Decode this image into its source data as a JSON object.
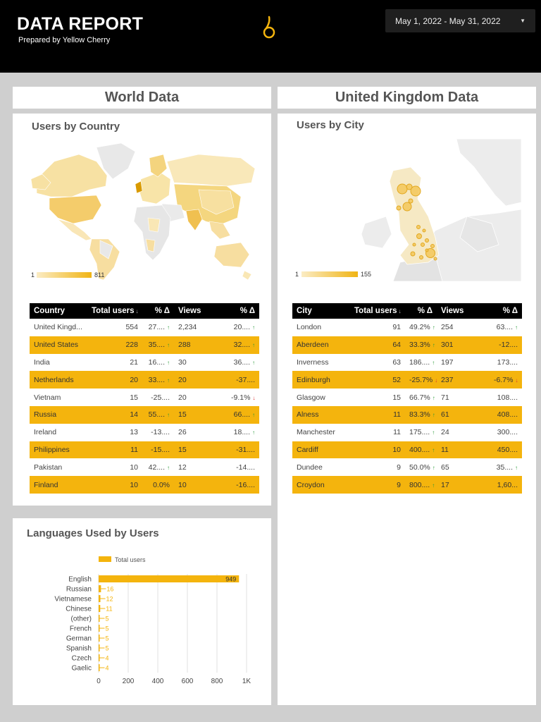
{
  "header": {
    "title": "DATA REPORT",
    "subtitle": "Prepared by Yellow Cherry",
    "date_range": "May 1, 2022 - May 31, 2022"
  },
  "sections": {
    "world": "World Data",
    "uk": "United Kingdom Data"
  },
  "world_map": {
    "title": "Users by Country",
    "legend_min": "1",
    "legend_max": "811"
  },
  "uk_map": {
    "title": "Users by City",
    "legend_min": "1",
    "legend_max": "155"
  },
  "country_table": {
    "headers": [
      "Country",
      "Total users",
      "% Δ",
      "Views",
      "% Δ"
    ],
    "rows": [
      {
        "name": "United Kingd...",
        "users": "554",
        "pct": "27....",
        "pdir": "up",
        "views": "2,234",
        "vpct": "20....",
        "vdir": "up"
      },
      {
        "name": "United States",
        "users": "228",
        "pct": "35....",
        "pdir": "up",
        "views": "288",
        "vpct": "32....",
        "vdir": "up"
      },
      {
        "name": "India",
        "users": "21",
        "pct": "16....",
        "pdir": "up",
        "views": "30",
        "vpct": "36....",
        "vdir": "up"
      },
      {
        "name": "Netherlands",
        "users": "20",
        "pct": "33....",
        "pdir": "up",
        "views": "20",
        "vpct": "-37....",
        "vdir": ""
      },
      {
        "name": "Vietnam",
        "users": "15",
        "pct": "-25....",
        "pdir": "",
        "views": "20",
        "vpct": "-9.1%",
        "vdir": "down"
      },
      {
        "name": "Russia",
        "users": "14",
        "pct": "55....",
        "pdir": "up",
        "views": "15",
        "vpct": "66....",
        "vdir": "up"
      },
      {
        "name": "Ireland",
        "users": "13",
        "pct": "-13....",
        "pdir": "",
        "views": "26",
        "vpct": "18....",
        "vdir": "up"
      },
      {
        "name": "Philippines",
        "users": "11",
        "pct": "-15....",
        "pdir": "",
        "views": "15",
        "vpct": "-31....",
        "vdir": ""
      },
      {
        "name": "Pakistan",
        "users": "10",
        "pct": "42....",
        "pdir": "up",
        "views": "12",
        "vpct": "-14....",
        "vdir": ""
      },
      {
        "name": "Finland",
        "users": "10",
        "pct": "0.0%",
        "pdir": "",
        "views": "10",
        "vpct": "-16....",
        "vdir": ""
      }
    ]
  },
  "city_table": {
    "headers": [
      "City",
      "Total users",
      "% Δ",
      "Views",
      "% Δ"
    ],
    "rows": [
      {
        "name": "London",
        "users": "91",
        "pct": "49.2%",
        "pdir": "up",
        "views": "254",
        "vpct": "63....",
        "vdir": "up"
      },
      {
        "name": "Aberdeen",
        "users": "64",
        "pct": "33.3%",
        "pdir": "up",
        "views": "301",
        "vpct": "-12....",
        "vdir": ""
      },
      {
        "name": "Inverness",
        "users": "63",
        "pct": "186....",
        "pdir": "up",
        "views": "197",
        "vpct": "173....",
        "vdir": ""
      },
      {
        "name": "Edinburgh",
        "users": "52",
        "pct": "-25.7%",
        "pdir": "down",
        "views": "237",
        "vpct": "-6.7%",
        "vdir": "down"
      },
      {
        "name": "Glasgow",
        "users": "15",
        "pct": "66.7%",
        "pdir": "up",
        "views": "71",
        "vpct": "108....",
        "vdir": ""
      },
      {
        "name": "Alness",
        "users": "11",
        "pct": "83.3%",
        "pdir": "up",
        "views": "61",
        "vpct": "408....",
        "vdir": ""
      },
      {
        "name": "Manchester",
        "users": "11",
        "pct": "175....",
        "pdir": "up",
        "views": "24",
        "vpct": "300....",
        "vdir": ""
      },
      {
        "name": "Cardiff",
        "users": "10",
        "pct": "400....",
        "pdir": "up",
        "views": "11",
        "vpct": "450....",
        "vdir": ""
      },
      {
        "name": "Dundee",
        "users": "9",
        "pct": "50.0%",
        "pdir": "up",
        "views": "65",
        "vpct": "35....",
        "vdir": "up"
      },
      {
        "name": "Croydon",
        "users": "9",
        "pct": "800....",
        "pdir": "up",
        "views": "17",
        "vpct": "1,60...",
        "vdir": ""
      }
    ]
  },
  "languages": {
    "title": "Languages Used by Users",
    "legend": "Total users",
    "tick_labels": [
      "0",
      "200",
      "400",
      "600",
      "800",
      "1K"
    ]
  },
  "chart_data": {
    "type": "bar",
    "orientation": "horizontal",
    "title": "Languages Used by Users",
    "categories": [
      "English",
      "Russian",
      "Vietnamese",
      "Chinese",
      "(other)",
      "French",
      "German",
      "Spanish",
      "Czech",
      "Gaelic"
    ],
    "series": [
      {
        "name": "Total users",
        "values": [
          949,
          16,
          12,
          11,
          5,
          5,
          5,
          5,
          4,
          4
        ]
      }
    ],
    "xlim": [
      0,
      1000
    ],
    "grid": true,
    "legend": "top",
    "color": "#f4b40d"
  },
  "colors": {
    "accent": "#f4b40d",
    "header_bg": "#000000",
    "up": "#2e9b3b",
    "down": "#dd3333"
  }
}
